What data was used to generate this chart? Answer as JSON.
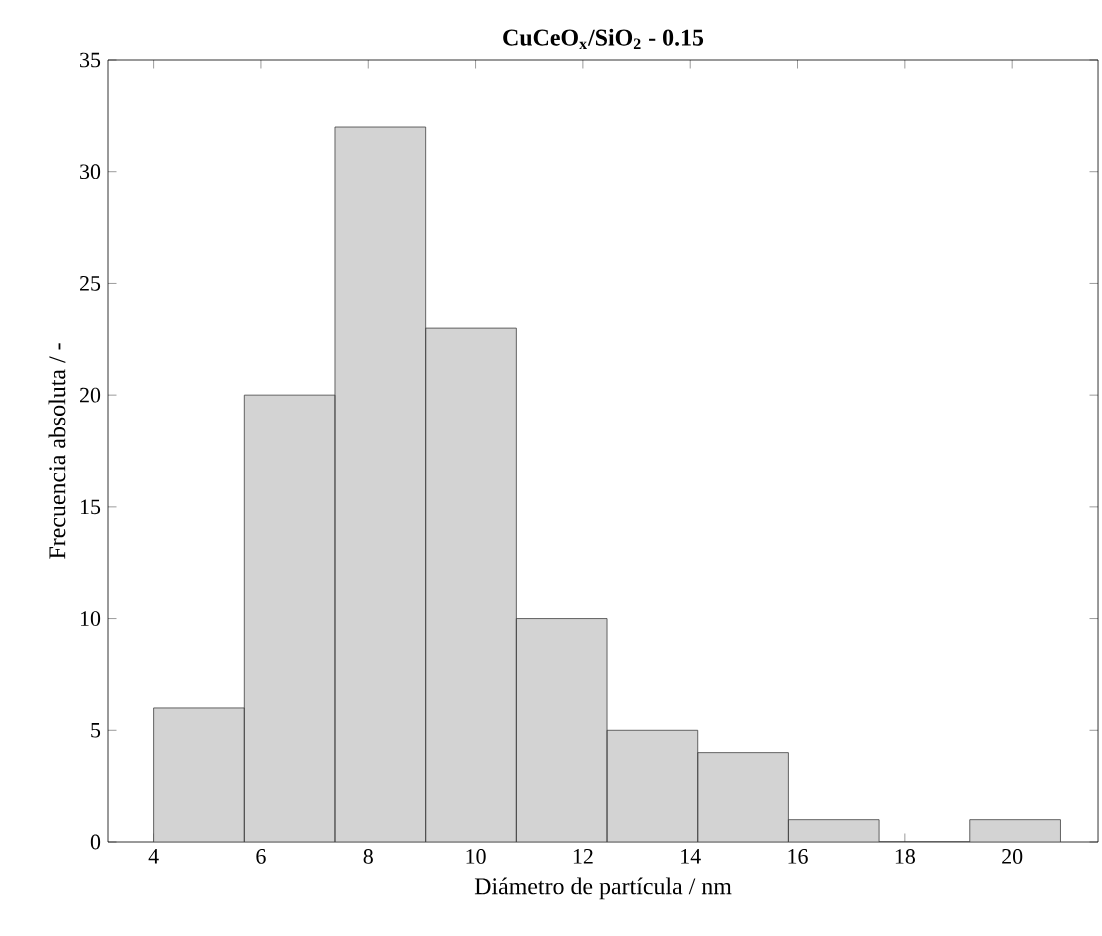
{
  "chart_data": {
    "type": "histogram",
    "title": "CuCeO$_{x}$/SiO$_{2}$ - 0.15",
    "xlabel": "Diámetro de partícula / nm",
    "ylabel": "Frecuencia absoluta / -",
    "bins": [
      4,
      5.69,
      7.38,
      9.07,
      10.76,
      12.45,
      14.14,
      15.83,
      17.52,
      19.21,
      20.9
    ],
    "values": [
      6,
      20,
      32,
      23,
      10,
      5,
      4,
      1,
      0,
      1
    ],
    "color": "#d3d3d3",
    "xlim": [
      3.15,
      21.6
    ],
    "ylim": [
      0,
      35
    ],
    "xticks": [
      4,
      6,
      8,
      10,
      12,
      14,
      16,
      18,
      20
    ],
    "yticks": [
      0,
      5,
      10,
      15,
      20,
      25,
      30,
      35
    ]
  }
}
